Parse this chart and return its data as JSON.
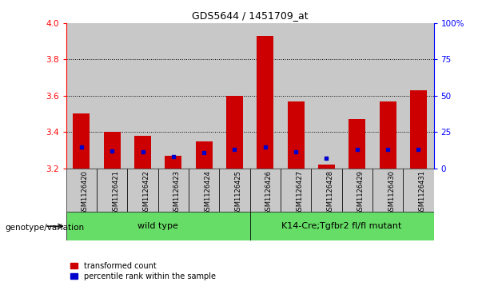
{
  "title": "GDS5644 / 1451709_at",
  "samples": [
    "GSM1126420",
    "GSM1126421",
    "GSM1126422",
    "GSM1126423",
    "GSM1126424",
    "GSM1126425",
    "GSM1126426",
    "GSM1126427",
    "GSM1126428",
    "GSM1126429",
    "GSM1126430",
    "GSM1126431"
  ],
  "red_values": [
    3.5,
    3.4,
    3.38,
    3.27,
    3.35,
    3.6,
    3.93,
    3.57,
    3.22,
    3.47,
    3.57,
    3.63
  ],
  "blue_values": [
    3.315,
    3.295,
    3.29,
    3.265,
    3.285,
    3.305,
    3.315,
    3.29,
    3.255,
    3.305,
    3.305,
    3.305
  ],
  "ymin": 3.2,
  "ymax": 4.0,
  "yticks": [
    3.2,
    3.4,
    3.6,
    3.8,
    4.0
  ],
  "right_yticks": [
    0,
    25,
    50,
    75,
    100
  ],
  "right_ytick_labels": [
    "0",
    "25",
    "50",
    "75",
    "100%"
  ],
  "group1_label": "wild type",
  "group2_label": "K14-Cre;Tgfbr2 fl/fl mutant",
  "group1_indices": [
    0,
    1,
    2,
    3,
    4,
    5
  ],
  "group2_indices": [
    6,
    7,
    8,
    9,
    10,
    11
  ],
  "bar_color": "#cc0000",
  "dot_color": "#0000cc",
  "group1_bg": "#66dd66",
  "group2_bg": "#66dd66",
  "sample_bg": "#c8c8c8",
  "plot_bg": "#ffffff",
  "legend_red": "transformed count",
  "legend_blue": "percentile rank within the sample",
  "genotype_label": "genotype/variation",
  "bar_width": 0.55,
  "baseline": 3.2
}
